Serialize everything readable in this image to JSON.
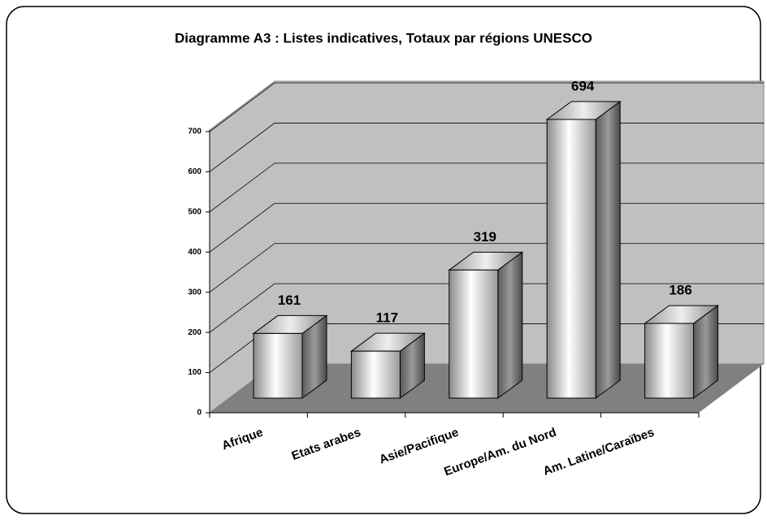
{
  "chart_data": {
    "type": "bar3d",
    "title": "Diagramme A3 : Listes indicatives, Totaux par régions UNESCO",
    "categories": [
      "Afrique",
      "Etats arabes",
      "Asie/Pacifique",
      "Europe/Am. du Nord",
      "Am. Latine/Caraïbes"
    ],
    "values": [
      161,
      117,
      319,
      694,
      186
    ],
    "ylim": [
      0,
      700
    ],
    "yticks": [
      0,
      100,
      200,
      300,
      400,
      500,
      600,
      700
    ],
    "grid": true
  }
}
